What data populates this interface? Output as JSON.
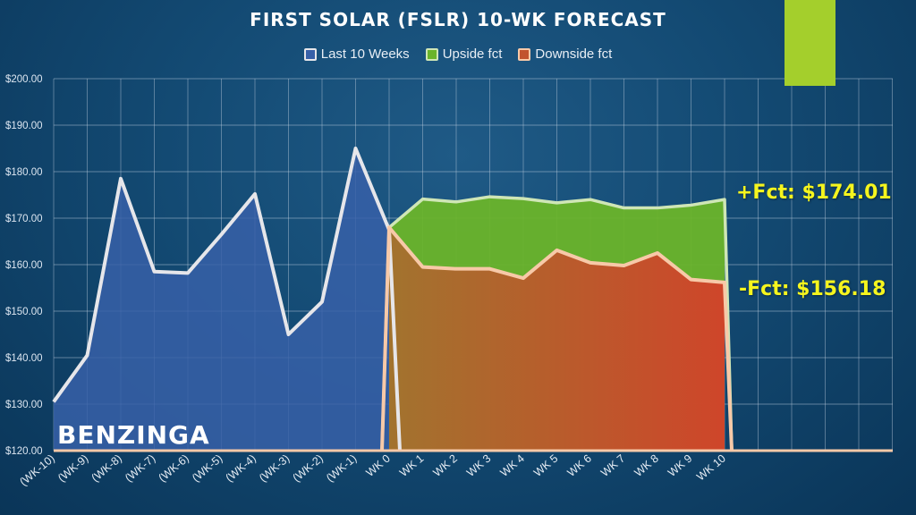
{
  "title": "FIRST SOLAR (FSLR) 10-WK FORECAST",
  "logo": "BENZINGA",
  "colors": {
    "accent": "#a4cf2c",
    "last": "#3760a8",
    "last_line": "#e6e6ea",
    "upside_fill": "#6ab42a",
    "upside_line": "#cfe6b6",
    "downside_fill": "#c2532e",
    "downside_line": "#f7c9a8",
    "grid": "#c7d4e4",
    "label_yellow": "#f5f51e"
  },
  "annotations": {
    "upside": "+Fct: $174.01",
    "downside": "-Fct: $156.18"
  },
  "chart_data": {
    "type": "area",
    "title": "FIRST SOLAR (FSLR) 10-WK FORECAST",
    "categories": [
      "(WK-10)",
      "(WK-9)",
      "(WK-8)",
      "(WK-7)",
      "(WK-6)",
      "(WK-5)",
      "(WK-4)",
      "(WK-3)",
      "(WK-2)",
      "(WK-1)",
      "WK 0",
      "WK 1",
      "WK 2",
      "WK 3",
      "WK 4",
      "WK 5",
      "WK 6",
      "WK 7",
      "WK 8",
      "WK 9",
      "WK 10"
    ],
    "y_ticks": [
      "$120.00",
      "$130.00",
      "$140.00",
      "$150.00",
      "$160.00",
      "$170.00",
      "$180.00",
      "$190.00",
      "$200.00"
    ],
    "ylim": [
      120,
      200
    ],
    "grid": true,
    "legend_position": "top",
    "series": [
      {
        "name": "Last 10 Weeks",
        "values": [
          130.5,
          140.5,
          178.5,
          158.5,
          158.2,
          166.5,
          175.2,
          145.0,
          152.0,
          185.0,
          167.5,
          null,
          null,
          null,
          null,
          null,
          null,
          null,
          null,
          null,
          null
        ]
      },
      {
        "name": "Upside fct",
        "values": [
          null,
          null,
          null,
          null,
          null,
          null,
          null,
          null,
          null,
          null,
          168.0,
          174.1,
          173.5,
          174.6,
          174.2,
          173.3,
          174.0,
          172.2,
          172.2,
          172.8,
          174.01
        ]
      },
      {
        "name": "Downside fct",
        "values": [
          null,
          null,
          null,
          null,
          null,
          null,
          null,
          null,
          null,
          null,
          168.0,
          159.5,
          159.1,
          159.1,
          157.1,
          163.1,
          160.4,
          159.8,
          162.5,
          156.8,
          156.18
        ]
      }
    ]
  }
}
